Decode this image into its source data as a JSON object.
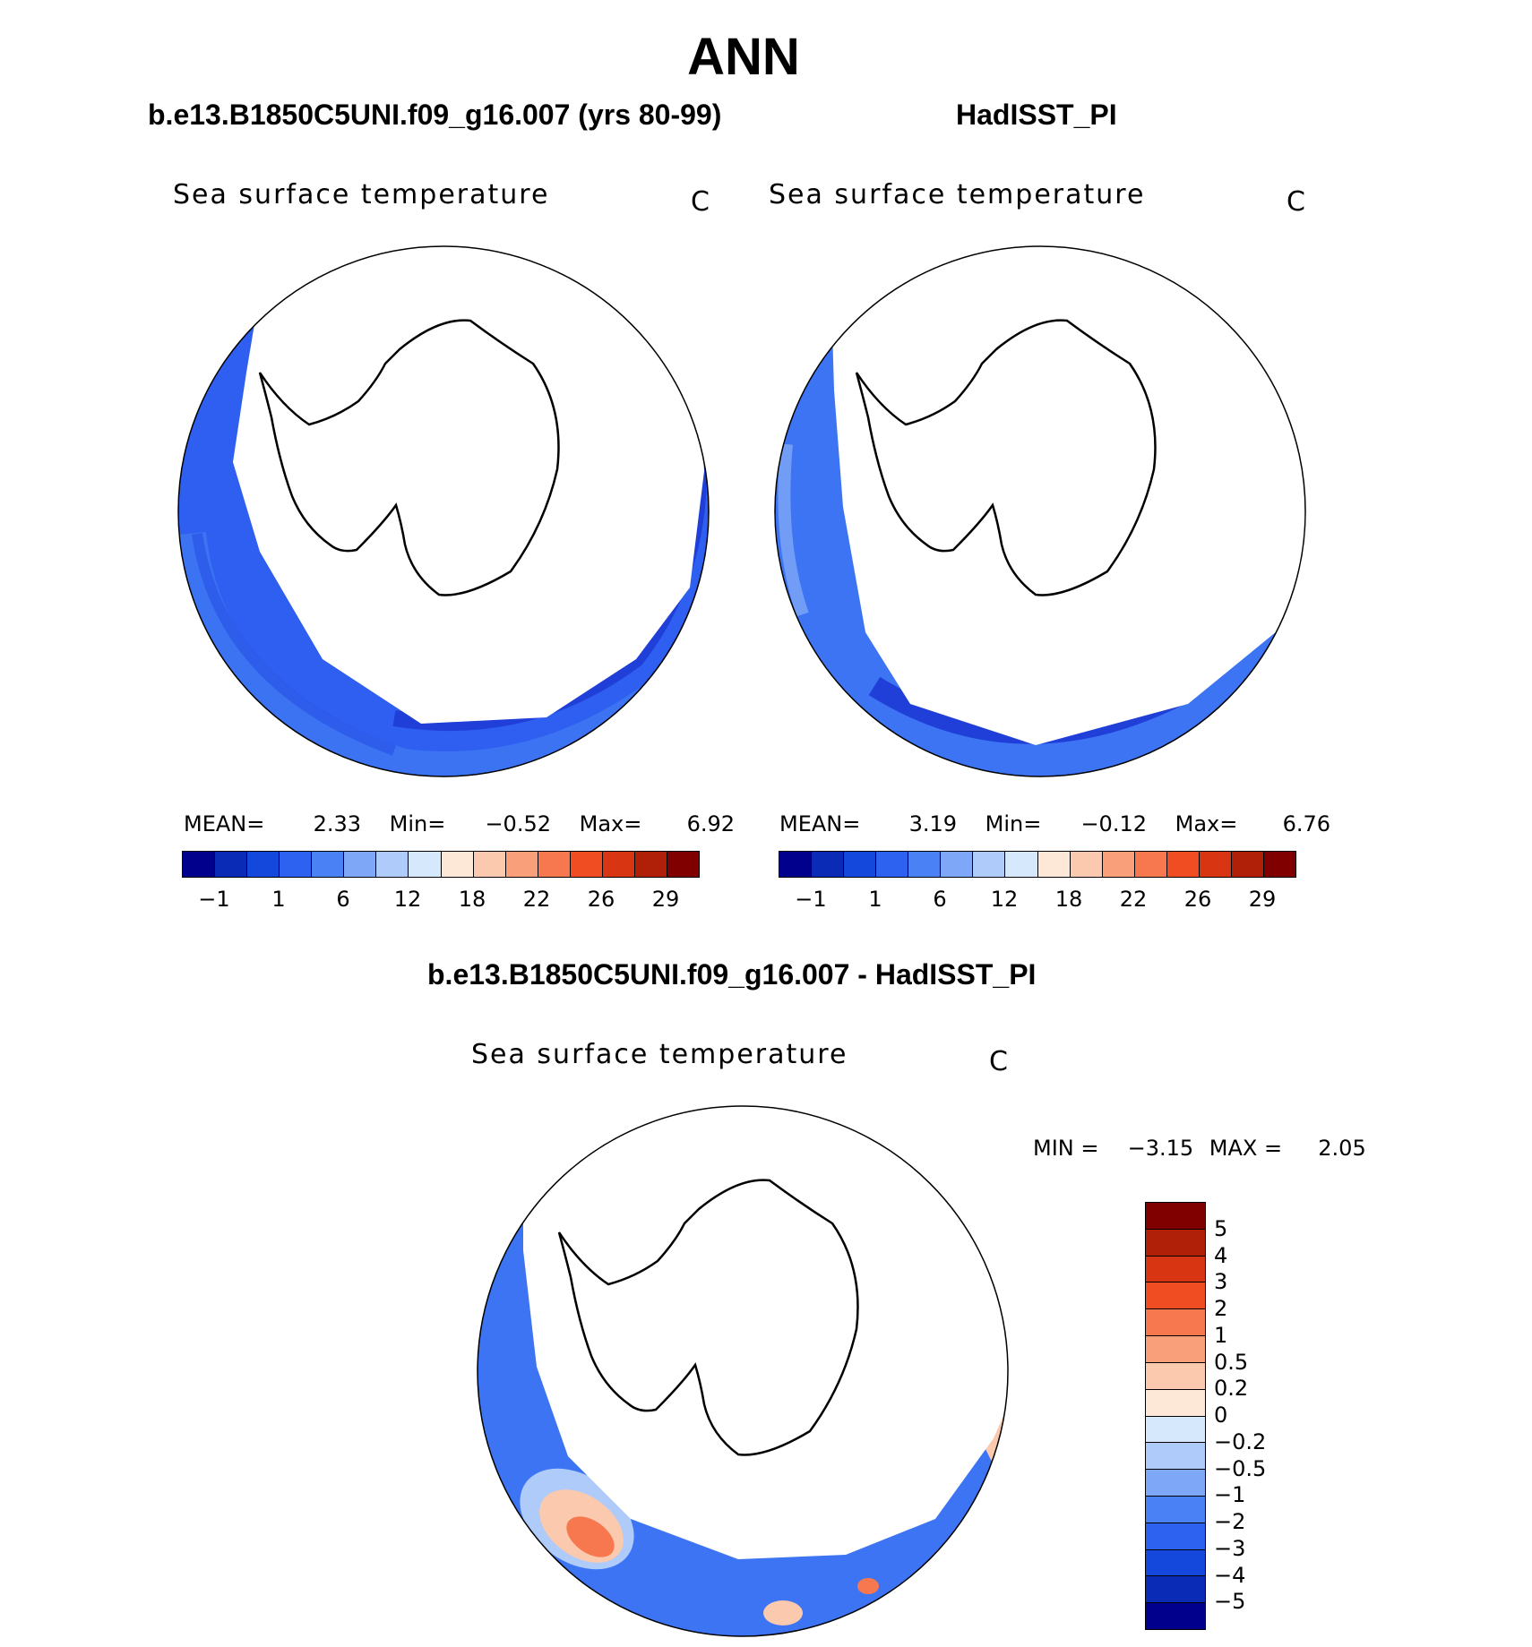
{
  "title": "ANN",
  "panels": {
    "left": {
      "title": "b.e13.B1850C5UNI.f09_g16.007 (yrs 80-99)",
      "variable": "Sea surface temperature",
      "unit": "C",
      "stats": {
        "mean_label": "MEAN=",
        "mean": "2.33",
        "min_label": "Min=",
        "min": "−0.52",
        "max_label": "Max=",
        "max": "6.92"
      }
    },
    "right": {
      "title": "HadISST_PI",
      "variable": "Sea surface temperature",
      "unit": "C",
      "stats": {
        "mean_label": "MEAN=",
        "mean": "3.19",
        "min_label": "Min=",
        "min": "−0.12",
        "max_label": "Max=",
        "max": "6.76"
      }
    },
    "diff": {
      "title": "b.e13.B1850C5UNI.f09_g16.007 - HadISST_PI",
      "variable": "Sea surface temperature",
      "unit": "C",
      "stats": {
        "min_label": "MIN =",
        "min": "−3.15",
        "max_label": "MAX =",
        "max": "2.05"
      }
    }
  },
  "chart_data": [
    {
      "type": "heatmap",
      "projection": "south polar stereographic",
      "panel": "left",
      "title": "b.e13.B1850C5UNI.f09_g16.007 (yrs 80-99)",
      "variable": "Sea surface temperature",
      "unit": "C",
      "mean": 2.33,
      "min": -0.52,
      "max": 6.92,
      "colorbar_ticks": [
        "−1",
        "1",
        "6",
        "12",
        "18",
        "22",
        "26",
        "29"
      ],
      "colorbar_colors": [
        "#00008c",
        "#0a2bb5",
        "#1447dc",
        "#2d62f0",
        "#4a82f5",
        "#7ea8f7",
        "#aecbf9",
        "#d6e8fb",
        "#fde8d8",
        "#fbc9ad",
        "#f9a07a",
        "#f7774f",
        "#f04e22",
        "#d83612",
        "#b02008",
        "#800000"
      ]
    },
    {
      "type": "heatmap",
      "projection": "south polar stereographic",
      "panel": "right",
      "title": "HadISST_PI",
      "variable": "Sea surface temperature",
      "unit": "C",
      "mean": 3.19,
      "min": -0.12,
      "max": 6.76,
      "colorbar_ticks": [
        "−1",
        "1",
        "6",
        "12",
        "18",
        "22",
        "26",
        "29"
      ],
      "colorbar_colors": [
        "#00008c",
        "#0a2bb5",
        "#1447dc",
        "#2d62f0",
        "#4a82f5",
        "#7ea8f7",
        "#aecbf9",
        "#d6e8fb",
        "#fde8d8",
        "#fbc9ad",
        "#f9a07a",
        "#f7774f",
        "#f04e22",
        "#d83612",
        "#b02008",
        "#800000"
      ]
    },
    {
      "type": "heatmap",
      "projection": "south polar stereographic",
      "panel": "diff",
      "title": "b.e13.B1850C5UNI.f09_g16.007 - HadISST_PI",
      "variable": "Sea surface temperature",
      "unit": "C",
      "min": -3.15,
      "max": 2.05,
      "colorbar_ticks": [
        "5",
        "4",
        "3",
        "2",
        "1",
        "0.5",
        "0.2",
        "0",
        "−0.2",
        "−0.5",
        "−1",
        "−2",
        "−3",
        "−4",
        "−5"
      ],
      "colorbar_colors": [
        "#800000",
        "#b02008",
        "#d83612",
        "#f04e22",
        "#f7774f",
        "#f9a07a",
        "#fbc9ad",
        "#fde8d8",
        "#d6e8fb",
        "#aecbf9",
        "#7ea8f7",
        "#4a82f5",
        "#2d62f0",
        "#1447dc",
        "#0a2bb5",
        "#00008c"
      ]
    }
  ]
}
